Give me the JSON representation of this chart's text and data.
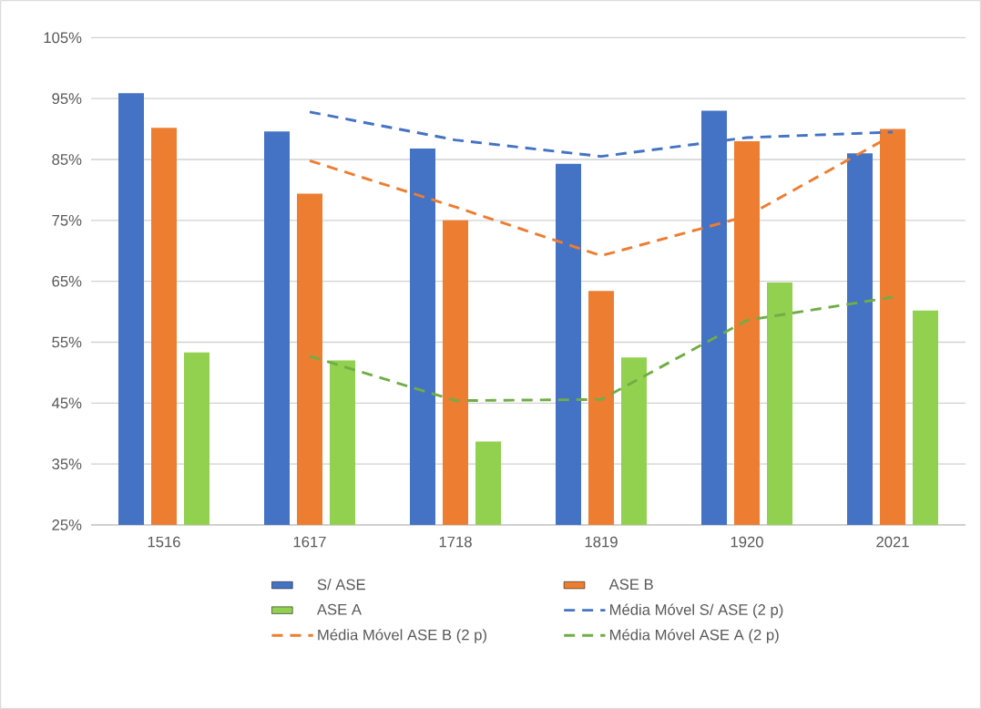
{
  "chart_data": {
    "type": "bar",
    "categories": [
      "1516",
      "1617",
      "1718",
      "1819",
      "1920",
      "2021"
    ],
    "series": [
      {
        "name": "S/ ASE",
        "color": "#4472c4",
        "values": [
          95.9,
          89.6,
          86.8,
          84.3,
          93.0,
          86.0
        ]
      },
      {
        "name": "ASE B",
        "color": "#ed7d31",
        "values": [
          90.2,
          79.4,
          75.0,
          63.4,
          88.0,
          90.0
        ]
      },
      {
        "name": "ASE A",
        "color": "#92d050",
        "values": [
          53.3,
          52.0,
          38.7,
          52.5,
          64.8,
          60.2
        ]
      },
      {
        "name": "Média Móvel S/ ASE (2 p)",
        "type": "line",
        "line_style": "dashed",
        "color": "#4472c4",
        "values": [
          null,
          92.8,
          88.2,
          85.5,
          88.6,
          89.5
        ]
      },
      {
        "name": "Média Móvel ASE B (2 p)",
        "type": "line",
        "line_style": "dashed",
        "color": "#ed7d31",
        "values": [
          null,
          84.8,
          77.2,
          69.2,
          75.7,
          89.0
        ]
      },
      {
        "name": "Média Móvel ASE A (2 p)",
        "type": "line",
        "line_style": "dashed",
        "color": "#70ad47",
        "values": [
          null,
          52.7,
          45.4,
          45.6,
          58.6,
          62.4
        ]
      }
    ],
    "ylim": [
      25,
      105
    ],
    "yticks": [
      {
        "value": 25,
        "label": "25%"
      },
      {
        "value": 35,
        "label": "35%"
      },
      {
        "value": 45,
        "label": "45%"
      },
      {
        "value": 55,
        "label": "55%"
      },
      {
        "value": 65,
        "label": "65%"
      },
      {
        "value": 75,
        "label": "75%"
      },
      {
        "value": 85,
        "label": "85%"
      },
      {
        "value": 95,
        "label": "95%"
      },
      {
        "value": 105,
        "label": "105%"
      }
    ],
    "grid": "y",
    "legend": "bottom"
  }
}
